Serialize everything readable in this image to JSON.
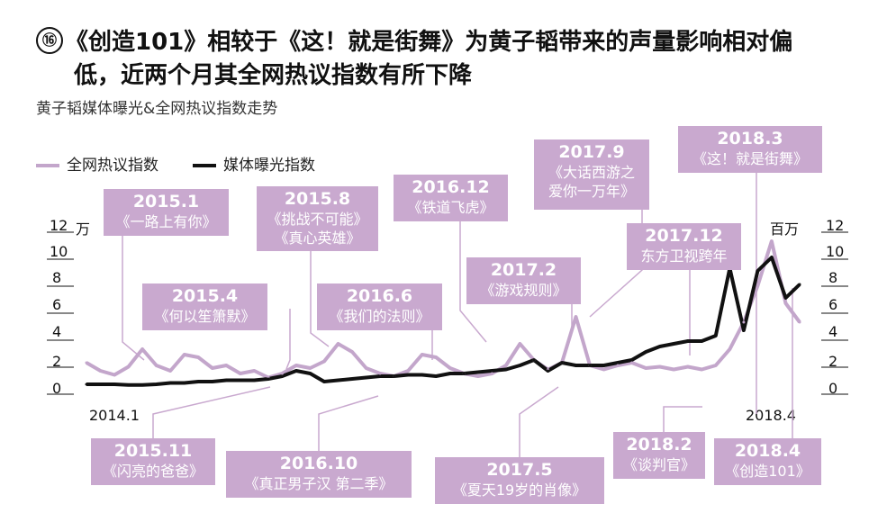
{
  "header": {
    "number": "⑯",
    "title_line1": "《创造101》相较于《这！就是街舞》为黄子韬带来的声量影响相对偏",
    "title_line2": "低，近两个月其全网热议指数有所下降",
    "subtitle": "黄子韬媒体曝光&全网热议指数走势"
  },
  "legend": {
    "series1": "全网热议指数",
    "series2": "媒体曝光指数"
  },
  "axes": {
    "left_unit": "万",
    "right_unit": "百万",
    "left_ticks": [
      "12",
      "10",
      "8",
      "6",
      "4",
      "2",
      "0"
    ],
    "right_ticks": [
      "12",
      "10",
      "8",
      "6",
      "4",
      "2",
      "0"
    ],
    "x_start": "2014.1",
    "x_end": "2018.4"
  },
  "colors": {
    "series1": "#c3a6cb",
    "series2": "#111111",
    "callout_bg": "#c9a9cf"
  },
  "callouts": [
    {
      "id": "c1",
      "date": "2015.1",
      "show": "《一路上有你》"
    },
    {
      "id": "c2",
      "date": "2015.4",
      "show": "《何以笙箫默》"
    },
    {
      "id": "c3",
      "date": "2015.8",
      "show": "《挑战不可能》",
      "show2": "《真心英雄》"
    },
    {
      "id": "c4",
      "date": "2016.6",
      "show": "《我们的法则》"
    },
    {
      "id": "c5",
      "date": "2016.12",
      "show": "《铁道飞虎》"
    },
    {
      "id": "c6",
      "date": "2017.2",
      "show": "《游戏规则》"
    },
    {
      "id": "c7",
      "date": "2017.9",
      "show": "《大话西游之",
      "show2": "爱你一万年》"
    },
    {
      "id": "c8",
      "date": "2017.12",
      "show": "东方卫视跨年"
    },
    {
      "id": "c9",
      "date": "2018.3",
      "show": "《这！就是街舞》"
    },
    {
      "id": "c10",
      "date": "2015.11",
      "show": "《闪亮的爸爸》"
    },
    {
      "id": "c11",
      "date": "2016.10",
      "show": "《真正男子汉 第二季》"
    },
    {
      "id": "c12",
      "date": "2017.5",
      "show": "《夏天19岁的肖像》"
    },
    {
      "id": "c13",
      "date": "2018.2",
      "show": "《谈判官》"
    },
    {
      "id": "c14",
      "date": "2018.4",
      "show": "《创造101》"
    }
  ],
  "chart_data": {
    "type": "line",
    "x_range": [
      "2014.1",
      "2018.4"
    ],
    "series": [
      {
        "name": "全网热议指数",
        "axis": "left",
        "unit": "万",
        "values": [
          1.8,
          1.2,
          0.9,
          1.5,
          2.8,
          1.6,
          1.2,
          2.4,
          2.2,
          1.4,
          1.6,
          1.0,
          1.2,
          0.7,
          1.0,
          1.6,
          1.4,
          1.9,
          3.2,
          2.6,
          1.4,
          1.0,
          0.8,
          1.2,
          2.4,
          2.2,
          1.4,
          1.0,
          0.8,
          1.0,
          1.6,
          3.2,
          2.0,
          1.3,
          1.8,
          5.2,
          1.6,
          1.3,
          1.6,
          1.8,
          1.4,
          1.5,
          1.3,
          1.5,
          1.3,
          1.6,
          2.8,
          4.8,
          7.5,
          10.8,
          6.2,
          4.8
        ]
      },
      {
        "name": "媒体曝光指数",
        "axis": "right",
        "unit": "百万",
        "values": [
          0.2,
          0.2,
          0.2,
          0.15,
          0.15,
          0.2,
          0.3,
          0.3,
          0.4,
          0.4,
          0.5,
          0.5,
          0.5,
          0.6,
          0.8,
          1.2,
          1.0,
          0.4,
          0.5,
          0.6,
          0.7,
          0.8,
          0.8,
          0.9,
          0.9,
          0.8,
          1.0,
          1.0,
          1.1,
          1.2,
          1.3,
          1.6,
          2.0,
          1.2,
          1.8,
          1.6,
          1.6,
          1.6,
          1.8,
          2.0,
          2.6,
          3.0,
          3.2,
          3.4,
          3.4,
          3.8,
          8.8,
          4.2,
          8.6,
          9.6,
          6.6,
          7.6
        ]
      }
    ]
  }
}
